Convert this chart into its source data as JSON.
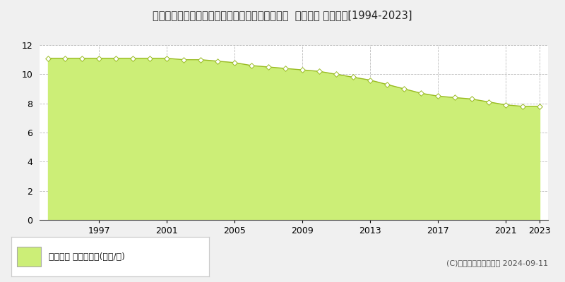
{
  "title": "宮崎県児湯郡高鍋町大字南高鍋字石原８５０番１  地価公示 地価推移[1994-2023]",
  "years": [
    1994,
    1995,
    1996,
    1997,
    1998,
    1999,
    2000,
    2001,
    2002,
    2003,
    2004,
    2005,
    2006,
    2007,
    2008,
    2009,
    2010,
    2011,
    2012,
    2013,
    2014,
    2015,
    2016,
    2017,
    2018,
    2019,
    2020,
    2021,
    2022,
    2023
  ],
  "values": [
    11.1,
    11.1,
    11.1,
    11.1,
    11.1,
    11.1,
    11.1,
    11.1,
    11.0,
    11.0,
    10.9,
    10.8,
    10.6,
    10.5,
    10.4,
    10.3,
    10.2,
    10.0,
    9.8,
    9.6,
    9.3,
    9.0,
    8.7,
    8.5,
    8.4,
    8.3,
    8.1,
    7.9,
    7.8,
    7.8
  ],
  "fill_color": "#ccee77",
  "line_color": "#99bb22",
  "marker_color": "#ffffff",
  "marker_edge_color": "#99bb22",
  "bg_color": "#f0f0f0",
  "plot_bg_color": "#ffffff",
  "grid_color": "#aaaaaa",
  "ylim": [
    0,
    12
  ],
  "yticks": [
    0,
    2,
    4,
    6,
    8,
    10,
    12
  ],
  "xticks": [
    1997,
    2001,
    2005,
    2009,
    2013,
    2017,
    2021,
    2023
  ],
  "legend_label": "地価公示 平均坪単価(万円/坪)",
  "legend_color": "#ccee77",
  "copyright_text": "(C)土地価格ドットコム 2024-09-11",
  "title_fontsize": 10.5,
  "axis_fontsize": 9,
  "legend_fontsize": 9
}
